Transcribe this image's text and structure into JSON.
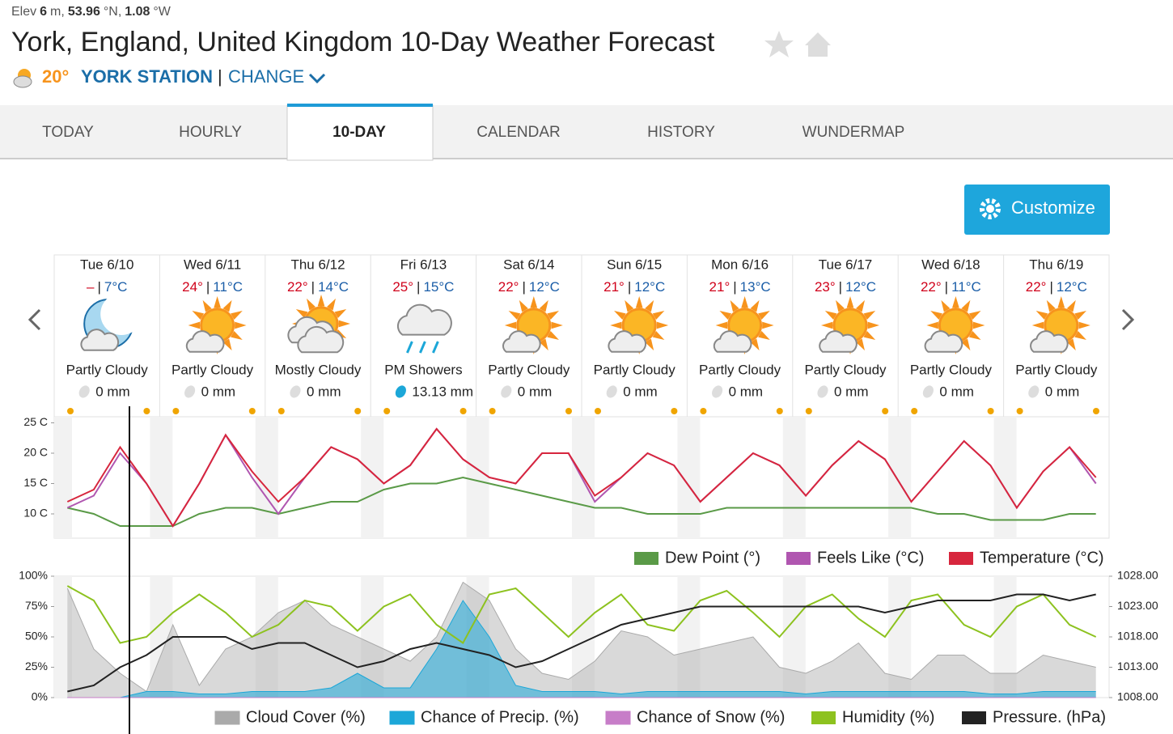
{
  "header": {
    "elev": [
      "Elev",
      "6",
      "m,",
      "53.96",
      "°N,",
      "1.08",
      "°W"
    ],
    "title": "York, England, United Kingdom 10-Day Weather Forecast",
    "temp": "20°",
    "station": "YORK STATION",
    "separator": "|",
    "change": "CHANGE"
  },
  "tabs": [
    "TODAY",
    "HOURLY",
    "10-DAY",
    "CALENDAR",
    "HISTORY",
    "WUNDERMAP"
  ],
  "customize": "Customize",
  "days": [
    {
      "date": "Tue 6/10",
      "high": "–",
      "low": "7°C",
      "condition": "Partly Cloudy",
      "precip": "0 mm"
    },
    {
      "date": "Wed 6/11",
      "high": "24°",
      "low": "11°C",
      "condition": "Partly Cloudy",
      "precip": "0 mm"
    },
    {
      "date": "Thu 6/12",
      "high": "22°",
      "low": "14°C",
      "condition": "Mostly Cloudy",
      "precip": "0 mm"
    },
    {
      "date": "Fri 6/13",
      "high": "25°",
      "low": "15°C",
      "condition": "PM Showers",
      "precip": "13.13 mm"
    },
    {
      "date": "Sat 6/14",
      "high": "22°",
      "low": "12°C",
      "condition": "Partly Cloudy",
      "precip": "0 mm"
    },
    {
      "date": "Sun 6/15",
      "high": "21°",
      "low": "12°C",
      "condition": "Partly Cloudy",
      "precip": "0 mm"
    },
    {
      "date": "Mon 6/16",
      "high": "21°",
      "low": "13°C",
      "condition": "Partly Cloudy",
      "precip": "0 mm"
    },
    {
      "date": "Tue 6/17",
      "high": "23°",
      "low": "12°C",
      "condition": "Partly Cloudy",
      "precip": "0 mm"
    },
    {
      "date": "Wed 6/18",
      "high": "22°",
      "low": "11°C",
      "condition": "Partly Cloudy",
      "precip": "0 mm"
    },
    {
      "date": "Thu 6/19",
      "high": "22°",
      "low": "12°C",
      "condition": "Partly Cloudy",
      "precip": "0 mm"
    }
  ],
  "chart_data": [
    {
      "type": "line",
      "ylim": [
        6,
        26
      ],
      "yticks": [
        {
          "value": 10,
          "label": "10 C"
        },
        {
          "value": 15,
          "label": "15 C"
        },
        {
          "value": 20,
          "label": "20 C"
        },
        {
          "value": 25,
          "label": "25 C"
        }
      ],
      "series": [
        {
          "name": "Dew Point (°)",
          "color": "#5a9a47",
          "values": [
            11,
            10,
            8,
            8,
            8,
            10,
            11,
            11,
            10,
            11,
            12,
            12,
            14,
            15,
            15,
            16,
            15,
            14,
            13,
            12,
            11,
            11,
            10,
            10,
            10,
            11,
            11,
            11,
            11,
            11,
            11,
            11,
            11,
            10,
            10,
            9,
            9,
            9,
            10,
            10
          ]
        },
        {
          "name": "Feels Like (°C)",
          "color": "#b056b0",
          "values": [
            11,
            13,
            20,
            15,
            8,
            15,
            23,
            16,
            10,
            16,
            21,
            19,
            15,
            18,
            24,
            19,
            16,
            15,
            20,
            20,
            12,
            16,
            20,
            18,
            12,
            16,
            20,
            18,
            13,
            18,
            22,
            19,
            12,
            17,
            22,
            18,
            11,
            17,
            21,
            15
          ]
        },
        {
          "name": "Temperature (°C)",
          "color": "#d7263d",
          "values": [
            12,
            14,
            21,
            15,
            8,
            15,
            23,
            17,
            12,
            16,
            21,
            19,
            15,
            18,
            24,
            19,
            16,
            15,
            20,
            20,
            13,
            16,
            20,
            18,
            12,
            16,
            20,
            18,
            13,
            18,
            22,
            19,
            12,
            17,
            22,
            18,
            11,
            17,
            21,
            16
          ]
        }
      ]
    },
    {
      "type": "line",
      "ylim": [
        0,
        100
      ],
      "yticks": [
        {
          "value": 0,
          "label": "0%"
        },
        {
          "value": 25,
          "label": "25%"
        },
        {
          "value": 50,
          "label": "50%"
        },
        {
          "value": 75,
          "label": "75%"
        },
        {
          "value": 100,
          "label": "100%"
        }
      ],
      "y2lim": [
        1008,
        1028
      ],
      "y2ticks": [
        {
          "value": 1008,
          "label": "1008.00"
        },
        {
          "value": 1013,
          "label": "1013.00"
        },
        {
          "value": 1018,
          "label": "1018.00"
        },
        {
          "value": 1023,
          "label": "1023.00"
        },
        {
          "value": 1028,
          "label": "1028.00"
        }
      ],
      "series": [
        {
          "name": "Cloud Cover (%)",
          "color": "#aaaaaa",
          "area": true,
          "values": [
            90,
            40,
            20,
            5,
            60,
            10,
            40,
            50,
            70,
            80,
            60,
            50,
            40,
            30,
            50,
            95,
            80,
            40,
            20,
            15,
            30,
            55,
            50,
            35,
            40,
            45,
            50,
            25,
            20,
            30,
            45,
            20,
            15,
            35,
            35,
            20,
            20,
            35,
            30,
            25
          ]
        },
        {
          "name": "Chance of Precip. (%)",
          "color": "#1ca7d8",
          "area": true,
          "values": [
            0,
            0,
            0,
            5,
            5,
            3,
            3,
            5,
            5,
            5,
            8,
            20,
            8,
            8,
            40,
            80,
            50,
            10,
            5,
            5,
            5,
            3,
            5,
            5,
            5,
            5,
            5,
            5,
            3,
            5,
            5,
            5,
            5,
            5,
            5,
            3,
            3,
            5,
            5,
            5
          ]
        },
        {
          "name": "Chance of Snow (%)",
          "color": "#c77dc8",
          "area": true,
          "values": [
            0,
            0,
            0,
            0,
            0,
            0,
            0,
            0,
            0,
            0,
            0,
            0,
            0,
            0,
            0,
            0,
            0,
            0,
            0,
            0,
            0,
            0,
            0,
            0,
            0,
            0,
            0,
            0,
            0,
            0,
            0,
            0,
            0,
            0,
            0,
            0,
            0,
            0,
            0,
            0
          ]
        },
        {
          "name": "Humidity (%)",
          "color": "#8dc21f",
          "values": [
            92,
            80,
            45,
            50,
            70,
            85,
            70,
            50,
            60,
            80,
            75,
            55,
            75,
            85,
            60,
            45,
            85,
            90,
            70,
            50,
            70,
            85,
            60,
            55,
            80,
            88,
            70,
            50,
            75,
            85,
            65,
            50,
            80,
            85,
            60,
            50,
            75,
            85,
            60,
            50
          ]
        },
        {
          "name": "Pressure. (hPa)",
          "color": "#222222",
          "axis": "y2",
          "values": [
            1009,
            1010,
            1013,
            1015,
            1018,
            1018,
            1018,
            1016,
            1017,
            1017,
            1015,
            1013,
            1014,
            1016,
            1017,
            1016,
            1015,
            1013,
            1014,
            1016,
            1018,
            1020,
            1021,
            1022,
            1023,
            1023,
            1023,
            1023,
            1023,
            1023,
            1023,
            1022,
            1023,
            1024,
            1024,
            1024,
            1025,
            1025,
            1024,
            1025
          ]
        }
      ]
    }
  ]
}
